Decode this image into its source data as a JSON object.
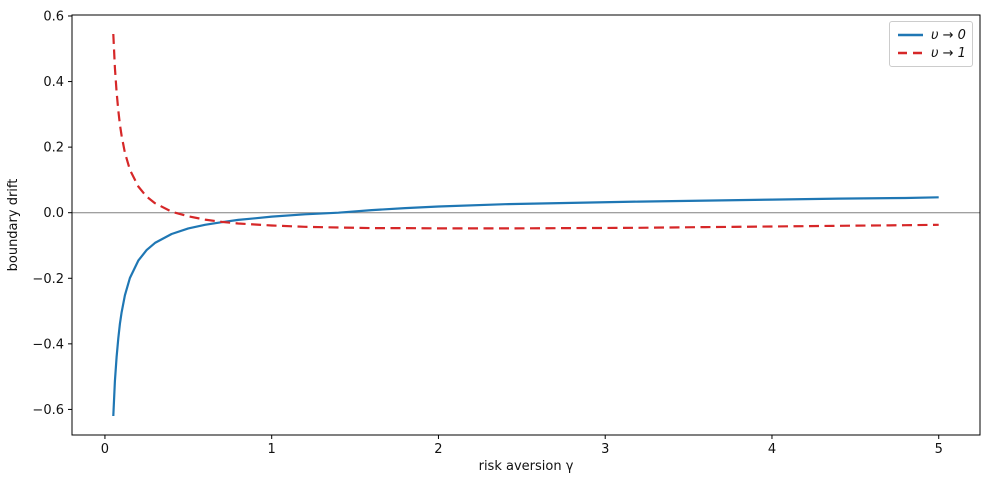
{
  "chart_data": {
    "type": "line",
    "title": "",
    "xlabel": "risk aversion γ",
    "ylabel": "boundary drift",
    "xlim": [
      -0.1975,
      5.2475
    ],
    "ylim": [
      -0.678,
      0.603
    ],
    "x_ticks": [
      0,
      1,
      2,
      3,
      4,
      5
    ],
    "x_tick_labels": [
      "0",
      "1",
      "2",
      "3",
      "4",
      "5"
    ],
    "y_ticks": [
      -0.6,
      -0.4,
      -0.2,
      0.0,
      0.2,
      0.4,
      0.6
    ],
    "y_tick_labels": [
      "−0.6",
      "−0.4",
      "−0.2",
      "0.0",
      "0.2",
      "0.4",
      "0.6"
    ],
    "grid": false,
    "legend_position": "upper right",
    "zero_line": {
      "y": 0,
      "color": "#808080",
      "width": 1
    },
    "axis_color": "#000000",
    "x": [
      0.05,
      0.06,
      0.07,
      0.08,
      0.09,
      0.1,
      0.12,
      0.15,
      0.2,
      0.25,
      0.3,
      0.4,
      0.5,
      0.6,
      0.7,
      0.8,
      0.9,
      1.0,
      1.2,
      1.4,
      1.6,
      1.8,
      2.0,
      2.4,
      2.8,
      3.2,
      3.6,
      4.0,
      4.4,
      4.8,
      5.0
    ],
    "series": [
      {
        "name": "υ → 0",
        "color": "#1f77b4",
        "line_style": "solid",
        "line_width": 2.2,
        "values": [
          -0.62,
          -0.514,
          -0.44,
          -0.383,
          -0.339,
          -0.304,
          -0.252,
          -0.199,
          -0.146,
          -0.114,
          -0.092,
          -0.065,
          -0.048,
          -0.037,
          -0.029,
          -0.022,
          -0.017,
          -0.012,
          -0.005,
          0.0,
          0.008,
          0.014,
          0.019,
          0.026,
          0.03,
          0.034,
          0.037,
          0.04,
          0.043,
          0.045,
          0.047
        ]
      },
      {
        "name": "υ → 1",
        "color": "#d62728",
        "line_style": "dashed",
        "line_width": 2.2,
        "values": [
          0.545,
          0.442,
          0.368,
          0.312,
          0.269,
          0.235,
          0.183,
          0.131,
          0.08,
          0.049,
          0.029,
          0.003,
          -0.011,
          -0.021,
          -0.028,
          -0.033,
          -0.036,
          -0.039,
          -0.043,
          -0.045,
          -0.047,
          -0.047,
          -0.048,
          -0.048,
          -0.047,
          -0.046,
          -0.044,
          -0.042,
          -0.04,
          -0.038,
          -0.037
        ]
      }
    ]
  }
}
